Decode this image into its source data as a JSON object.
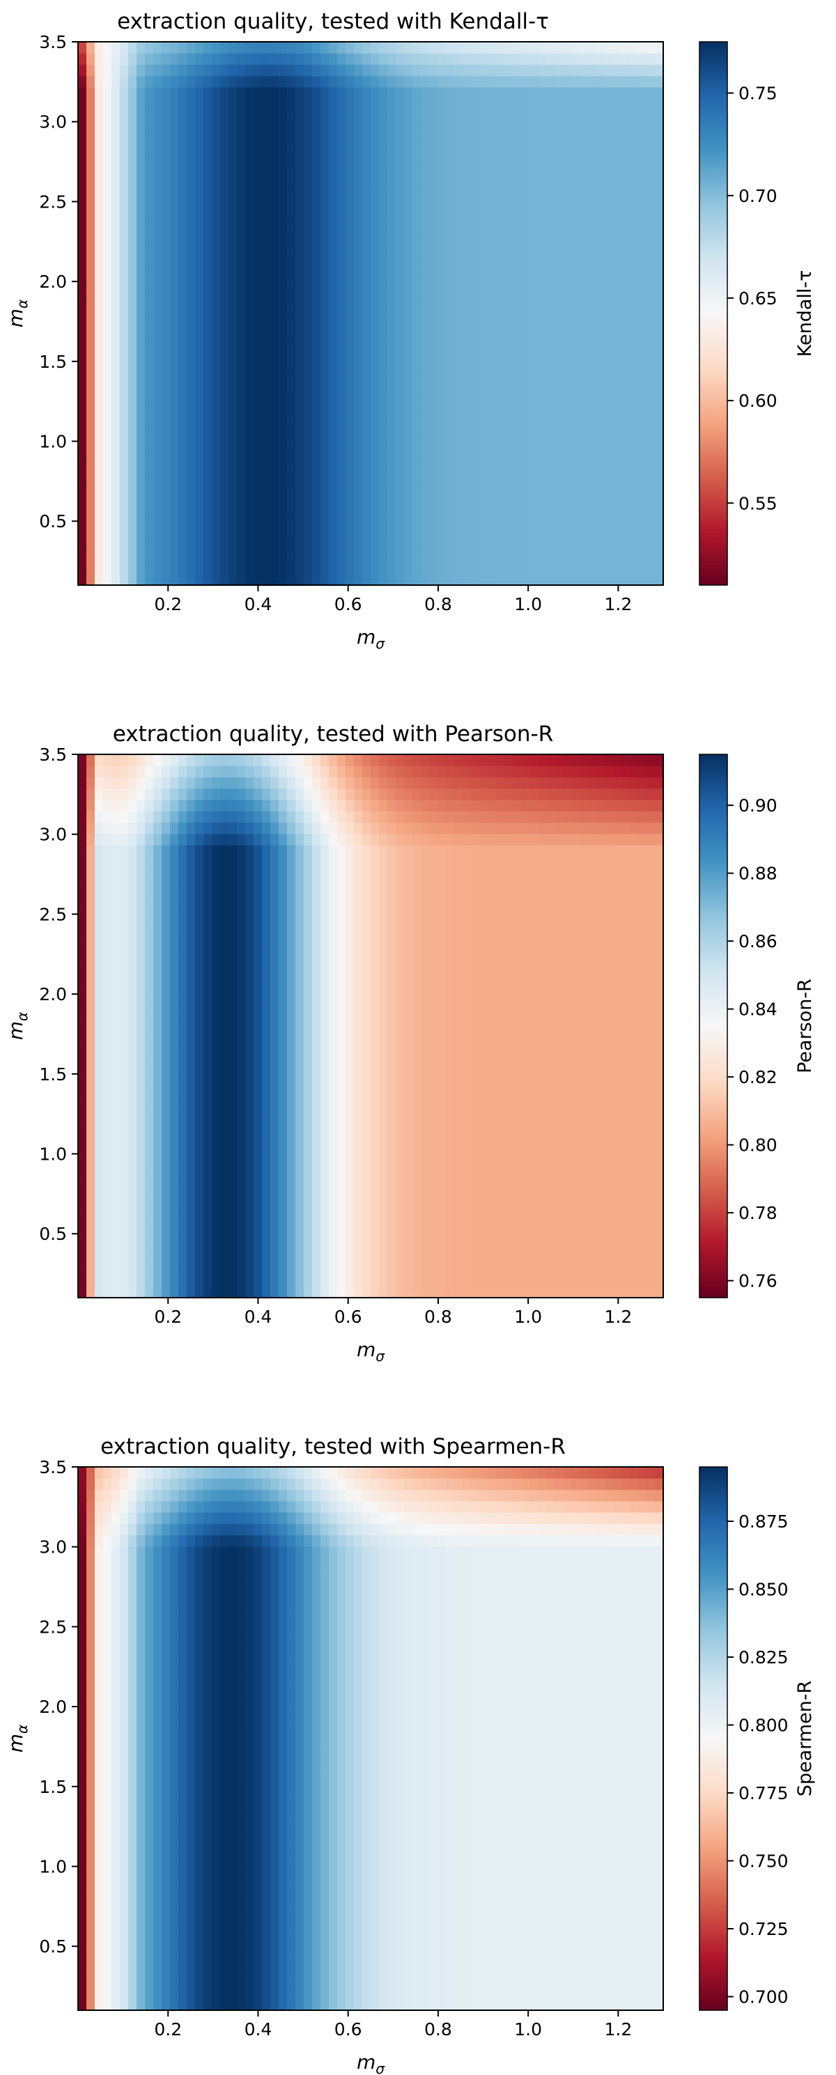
{
  "chart_data": [
    {
      "type": "heatmap",
      "title": "extraction quality, tested with Kendall-τ",
      "xlabel": "m_σ",
      "ylabel": "m_α",
      "colorbar_label": "Kendall-τ",
      "colormap": "RdBu",
      "xlim": [
        0.0,
        1.3
      ],
      "ylim": [
        0.1,
        3.5
      ],
      "xticks": [
        "0.2",
        "0.4",
        "0.6",
        "0.8",
        "1.0",
        "1.2"
      ],
      "yticks": [
        "0.5",
        "1.0",
        "1.5",
        "2.0",
        "2.5",
        "3.0",
        "3.5"
      ],
      "clim": [
        0.51,
        0.775
      ],
      "cbar_ticks": [
        "0.55",
        "0.60",
        "0.65",
        "0.70",
        "0.75"
      ],
      "surface": {
        "min_value": 0.51,
        "peak_value": 0.775,
        "peak_x": 0.42,
        "floor_value": 0.705,
        "near_zero_value": 0.63,
        "top_right_value": 0.64,
        "top_band_start": 3.2,
        "mid_right_adjust": 0.0,
        "mid_right_x": 0.8,
        "mid_right_band_top": 2.9
      }
    },
    {
      "type": "heatmap",
      "title": "extraction quality, tested with Pearson-R",
      "xlabel": "m_σ",
      "ylabel": "m_α",
      "colorbar_label": "Pearson-R",
      "colormap": "RdBu",
      "xlim": [
        0.0,
        1.3
      ],
      "ylim": [
        0.1,
        3.5
      ],
      "xticks": [
        "0.2",
        "0.4",
        "0.6",
        "0.8",
        "1.0",
        "1.2"
      ],
      "yticks": [
        "0.5",
        "1.0",
        "1.5",
        "2.0",
        "2.5",
        "3.0",
        "3.5"
      ],
      "clim": [
        0.755,
        0.915
      ],
      "cbar_ticks": [
        "0.76",
        "0.78",
        "0.80",
        "0.82",
        "0.84",
        "0.86",
        "0.88",
        "0.90"
      ],
      "surface": {
        "min_value": 0.755,
        "peak_value": 0.915,
        "peak_x": 0.33,
        "floor_value": 0.805,
        "near_zero_value": 0.85,
        "top_right_value": 0.76,
        "top_band_start": 2.9,
        "mid_right_adjust": 0.0,
        "mid_right_x": 0.75,
        "mid_right_band_top": 2.8
      }
    },
    {
      "type": "heatmap",
      "title": "extraction quality, tested with Spearmen-R",
      "xlabel": "m_σ",
      "ylabel": "m_α",
      "colorbar_label": "Spearmen-R",
      "colormap": "RdBu",
      "xlim": [
        0.0,
        1.3
      ],
      "ylim": [
        0.1,
        3.5
      ],
      "xticks": [
        "0.2",
        "0.4",
        "0.6",
        "0.8",
        "1.0",
        "1.2"
      ],
      "yticks": [
        "0.5",
        "1.0",
        "1.5",
        "2.0",
        "2.5",
        "3.0",
        "3.5"
      ],
      "clim": [
        0.695,
        0.895
      ],
      "cbar_ticks": [
        "0.700",
        "0.725",
        "0.750",
        "0.775",
        "0.800",
        "0.825",
        "0.850",
        "0.875"
      ],
      "surface": {
        "min_value": 0.695,
        "peak_value": 0.895,
        "peak_x": 0.34,
        "floor_value": 0.805,
        "near_zero_value": 0.79,
        "top_right_value": 0.72,
        "top_band_start": 3.0,
        "mid_right_adjust": 0.0,
        "mid_right_x": 0.8,
        "mid_right_band_top": 2.9
      }
    }
  ]
}
